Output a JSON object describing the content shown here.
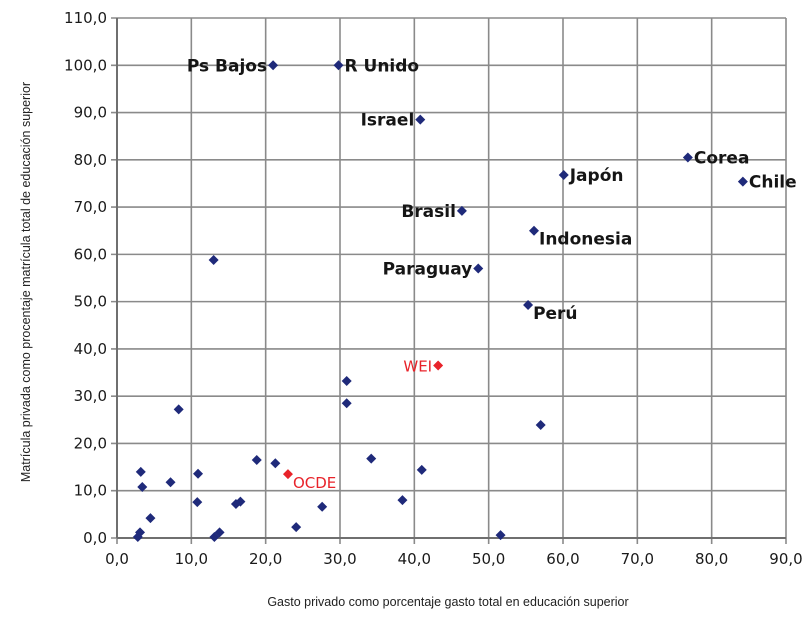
{
  "chart_data": {
    "type": "scatter",
    "xlabel": "Gasto privado como porcentaje gasto total en educación superior",
    "ylabel": "Matrícula privada como procentaje matrícula total de educación superior",
    "xlim": [
      0,
      90
    ],
    "ylim": [
      0,
      110
    ],
    "x_ticks": [
      "0,0",
      "10,0",
      "20,0",
      "30,0",
      "40,0",
      "50,0",
      "60,0",
      "70,0",
      "80,0",
      "90,0"
    ],
    "y_ticks": [
      "0,0",
      "10,0",
      "20,0",
      "30,0",
      "40,0",
      "50,0",
      "60,0",
      "70,0",
      "80,0",
      "90,0",
      "100,0",
      "110,0"
    ],
    "grid": true,
    "marker_color": "#1f2a7a",
    "highlight_color": "#e8232a",
    "points": [
      {
        "x": 21.0,
        "y": 100.0,
        "label": "Ps Bajos",
        "pos": "left"
      },
      {
        "x": 29.8,
        "y": 100.0,
        "label": "R Unido",
        "pos": "right"
      },
      {
        "x": 40.8,
        "y": 88.5,
        "label": "Israel",
        "pos": "left"
      },
      {
        "x": 76.8,
        "y": 80.5,
        "label": "Corea",
        "pos": "right"
      },
      {
        "x": 60.1,
        "y": 76.8,
        "label": "Japón",
        "pos": "right"
      },
      {
        "x": 84.2,
        "y": 75.4,
        "label": "Chile",
        "pos": "right"
      },
      {
        "x": 46.4,
        "y": 69.2,
        "label": "Brasil",
        "pos": "left"
      },
      {
        "x": 56.1,
        "y": 65.0,
        "label": "Indonesia",
        "pos": "right-below"
      },
      {
        "x": 13.0,
        "y": 58.8
      },
      {
        "x": 48.6,
        "y": 57.0,
        "label": "Paraguay",
        "pos": "left"
      },
      {
        "x": 55.3,
        "y": 49.3,
        "label": "Perú",
        "pos": "right-below"
      },
      {
        "x": 43.2,
        "y": 36.5,
        "label": "WEI",
        "pos": "left",
        "highlight": true
      },
      {
        "x": 30.9,
        "y": 33.2
      },
      {
        "x": 30.9,
        "y": 28.5
      },
      {
        "x": 8.3,
        "y": 27.2
      },
      {
        "x": 57.0,
        "y": 23.9
      },
      {
        "x": 34.2,
        "y": 16.8
      },
      {
        "x": 18.8,
        "y": 16.5
      },
      {
        "x": 21.3,
        "y": 15.8
      },
      {
        "x": 41.0,
        "y": 14.4
      },
      {
        "x": 3.2,
        "y": 14.0
      },
      {
        "x": 10.9,
        "y": 13.6
      },
      {
        "x": 23.0,
        "y": 13.5,
        "label": "OCDE",
        "pos": "right-below",
        "highlight": true
      },
      {
        "x": 7.2,
        "y": 11.8
      },
      {
        "x": 3.4,
        "y": 10.8
      },
      {
        "x": 10.8,
        "y": 7.6
      },
      {
        "x": 16.6,
        "y": 7.7
      },
      {
        "x": 16.0,
        "y": 7.2
      },
      {
        "x": 38.4,
        "y": 8.0
      },
      {
        "x": 27.6,
        "y": 6.6
      },
      {
        "x": 4.5,
        "y": 4.2
      },
      {
        "x": 24.1,
        "y": 2.3
      },
      {
        "x": 2.8,
        "y": 0.2
      },
      {
        "x": 3.1,
        "y": 1.2
      },
      {
        "x": 13.1,
        "y": 0.2
      },
      {
        "x": 13.8,
        "y": 1.2
      },
      {
        "x": 51.6,
        "y": 0.6
      }
    ]
  }
}
